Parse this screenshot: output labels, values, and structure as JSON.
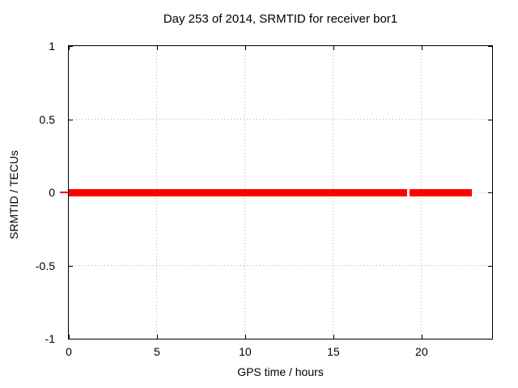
{
  "chart_data": {
    "type": "line",
    "title": "Day 253 of 2014, SRMTID for receiver bor1",
    "xlabel": "GPS time / hours",
    "ylabel": "SRMTID / TECUs",
    "xlim": [
      0,
      24
    ],
    "ylim": [
      -1,
      1
    ],
    "xticks": [
      0,
      5,
      10,
      15,
      20
    ],
    "yticks": [
      1,
      0.5,
      0,
      -0.5,
      -1
    ],
    "grid": true,
    "grid_xticks": [
      5,
      10,
      15,
      20
    ],
    "grid_yticks": [
      0.5,
      0,
      -0.5
    ],
    "legend": "none",
    "series": [
      {
        "name": "SRMTID",
        "color": "#ff0000",
        "y_value": 0,
        "x_segments": [
          [
            0,
            19.16
          ],
          [
            19.3,
            22.87
          ]
        ],
        "note": "constant 0 TECUs line with small data gap near 19.2 h, data ends ~22.9 h"
      }
    ]
  },
  "colors": {
    "series": "#ff0000",
    "grid": "#b0b0b0",
    "border": "#000000",
    "text": "#000000",
    "background": "#ffffff"
  }
}
